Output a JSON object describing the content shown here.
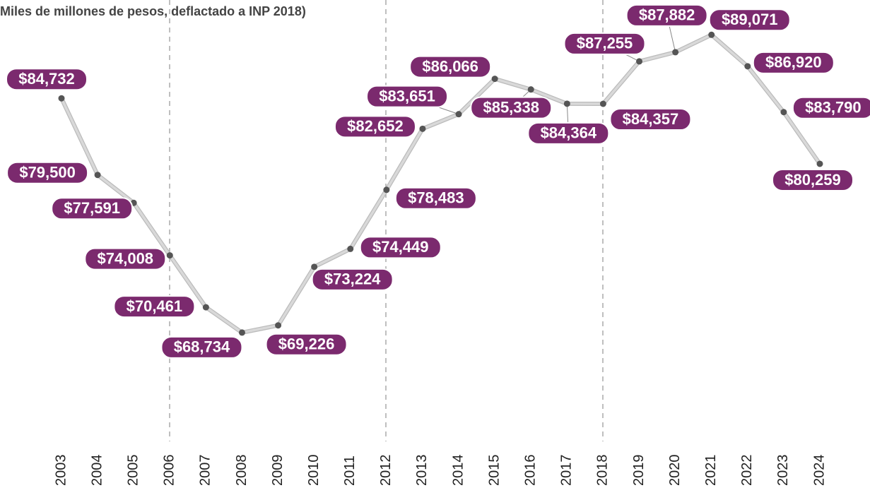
{
  "chart_data": {
    "type": "line",
    "title": "Miles de millones de pesos, deflactado a INP 2018)",
    "categories": [
      "2003",
      "2004",
      "2005",
      "2006",
      "2007",
      "2008",
      "2009",
      "2010",
      "2011",
      "2012",
      "2013",
      "2014",
      "2015",
      "2016",
      "2017",
      "2018",
      "2019",
      "2020",
      "2021",
      "2022",
      "2023",
      "2024"
    ],
    "values": [
      84732,
      79500,
      77591,
      74008,
      70461,
      68734,
      69226,
      73224,
      74449,
      78483,
      82652,
      83651,
      86066,
      85338,
      84364,
      84357,
      87255,
      87882,
      89071,
      86920,
      83790,
      80259
    ],
    "value_labels": [
      "$84,732",
      "$79,500",
      "$77,591",
      "$74,008",
      "$70,461",
      "$68,734",
      "$69,226",
      "$73,224",
      "$74,449",
      "$78,483",
      "$82,652",
      "$83,651",
      "$86,066",
      "$85,338",
      "$84,364",
      "$84,357",
      "$87,255",
      "$87,882",
      "$89,071",
      "$86,920",
      "$83,790",
      "$80,259"
    ],
    "color": "#d9d9d9",
    "label_color": "#7b2a6e",
    "ylim": [
      60000,
      90000
    ]
  }
}
